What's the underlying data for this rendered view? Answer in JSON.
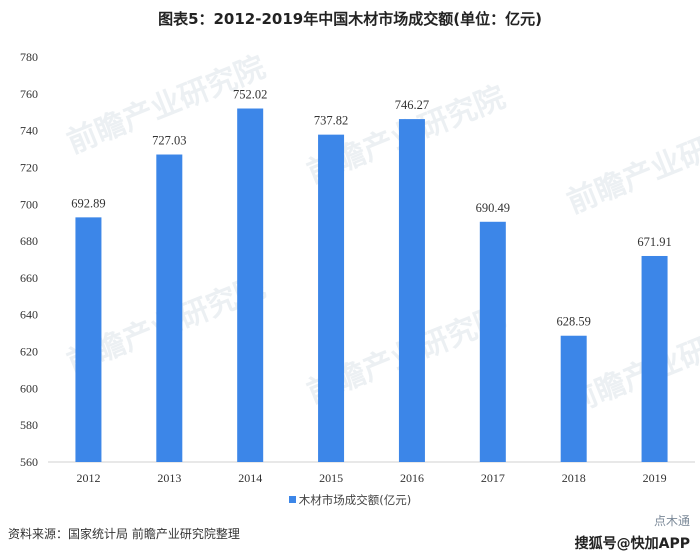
{
  "title": "图表5：2012-2019年中国木材市场成交额(单位：亿元)",
  "legend_label": "木材市场成交额(亿元)",
  "source": "资料来源：国家统计局 前瞻产业研究院整理",
  "watermark": {
    "brand": "前瞻产业研究院",
    "corner_top": "点木通",
    "corner_bottom": "搜狐号@快加APP"
  },
  "colors": {
    "bar": "#3c86e8",
    "axis": "#d0d0d0"
  },
  "chart_data": {
    "type": "bar",
    "title": "图表5：2012-2019年中国木材市场成交额(单位：亿元)",
    "categories": [
      "2012",
      "2013",
      "2014",
      "2015",
      "2016",
      "2017",
      "2018",
      "2019"
    ],
    "series": [
      {
        "name": "木材市场成交额(亿元)",
        "values": [
          692.89,
          727.03,
          752.02,
          737.82,
          746.27,
          690.49,
          628.59,
          671.91
        ]
      }
    ],
    "value_labels": [
      "692.89",
      "727.03",
      "752.02",
      "737.82",
      "746.27",
      "690.49",
      "628.59",
      "671.91"
    ],
    "ylim": [
      560,
      780
    ],
    "yticks": [
      "560",
      "580",
      "600",
      "620",
      "640",
      "660",
      "680",
      "700",
      "720",
      "740",
      "760",
      "780"
    ],
    "grid": false,
    "legend_position": "bottom"
  }
}
